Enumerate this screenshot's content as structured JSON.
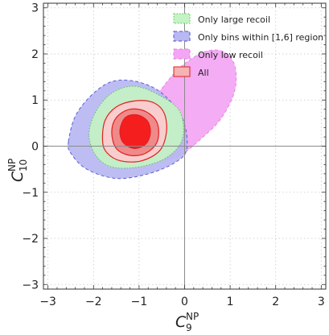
{
  "chart_data": {
    "type": "contour",
    "xlabel": {
      "base": "C",
      "sub": "9",
      "sup": "NP"
    },
    "ylabel": {
      "base": "C",
      "sub": "10",
      "sup": "NP"
    },
    "xlim": [
      -3.1,
      3.1
    ],
    "ylim": [
      -3.1,
      3.1
    ],
    "xticks": [
      -3,
      -2,
      -1,
      0,
      1,
      2,
      3
    ],
    "yticks": [
      -3,
      -2,
      -1,
      0,
      1,
      2,
      3
    ],
    "x_tick_labels": [
      "−3",
      "−2",
      "−1",
      "0",
      "1",
      "2",
      "3"
    ],
    "y_tick_labels": [
      "−3",
      "−2",
      "−1",
      "0",
      "1",
      "2",
      "3"
    ],
    "grid": true,
    "grid_style": "dotted",
    "reference_lines": {
      "x": 0,
      "y": 0
    },
    "legend_position": "top-right",
    "series": [
      {
        "name": "Only low recoil",
        "fill": "#f4a6f4",
        "stroke": "#e27be2",
        "dash": "dashed",
        "regions": [
          {
            "level": 1,
            "points": [
              [
                -1.0,
                0.15
              ],
              [
                -0.85,
                0.7
              ],
              [
                -0.5,
                1.25
              ],
              [
                -0.05,
                1.75
              ],
              [
                0.45,
                2.05
              ],
              [
                0.85,
                2.05
              ],
              [
                1.1,
                1.75
              ],
              [
                1.1,
                1.2
              ],
              [
                0.8,
                0.6
              ],
              [
                0.35,
                0.15
              ],
              [
                -0.1,
                -0.2
              ],
              [
                -0.5,
                -0.3
              ],
              [
                -0.85,
                -0.2
              ]
            ]
          }
        ]
      },
      {
        "name": "Only bins within [1,6] region",
        "fill": "#b8b8f2",
        "stroke": "#5050d0",
        "dash": "dashed",
        "regions": [
          {
            "level": 1,
            "points": [
              [
                -2.55,
                0.1
              ],
              [
                -2.4,
                0.65
              ],
              [
                -2.05,
                1.1
              ],
              [
                -1.6,
                1.4
              ],
              [
                -1.05,
                1.4
              ],
              [
                -0.5,
                1.15
              ],
              [
                -0.05,
                0.6
              ],
              [
                0.05,
                -0.05
              ],
              [
                -0.2,
                -0.35
              ],
              [
                -0.8,
                -0.6
              ],
              [
                -1.5,
                -0.7
              ],
              [
                -2.15,
                -0.5
              ],
              [
                -2.5,
                -0.15
              ]
            ]
          }
        ]
      },
      {
        "name": "Only large recoil",
        "fill": "#c4f3c4",
        "stroke": "#52c452",
        "dash": "dotted",
        "regions": [
          {
            "level": 1,
            "points": [
              [
                -2.1,
                0.25
              ],
              [
                -1.95,
                0.75
              ],
              [
                -1.6,
                1.15
              ],
              [
                -1.1,
                1.3
              ],
              [
                -0.55,
                1.1
              ],
              [
                -0.1,
                0.75
              ],
              [
                -0.05,
                0.15
              ],
              [
                -0.4,
                -0.25
              ],
              [
                -1.0,
                -0.45
              ],
              [
                -1.6,
                -0.45
              ],
              [
                -1.95,
                -0.2
              ]
            ]
          }
        ]
      },
      {
        "name": "All",
        "fill": "#f5b3b3",
        "stroke": "#e02020",
        "dash": "solid",
        "regions": [
          {
            "level": 3,
            "fill": "#f9cdcd",
            "points": [
              [
                -1.8,
                0.1
              ],
              [
                -1.75,
                0.55
              ],
              [
                -1.5,
                0.85
              ],
              [
                -1.1,
                0.98
              ],
              [
                -0.7,
                0.95
              ],
              [
                -0.45,
                0.72
              ],
              [
                -0.4,
                0.3
              ],
              [
                -0.55,
                -0.1
              ],
              [
                -0.95,
                -0.32
              ],
              [
                -1.4,
                -0.32
              ],
              [
                -1.7,
                -0.15
              ]
            ]
          },
          {
            "level": 2,
            "fill": "#f08a8a",
            "points": [
              [
                -1.6,
                0.3
              ],
              [
                -1.5,
                0.62
              ],
              [
                -1.2,
                0.8
              ],
              [
                -0.85,
                0.75
              ],
              [
                -0.6,
                0.5
              ],
              [
                -0.6,
                0.1
              ],
              [
                -0.85,
                -0.15
              ],
              [
                -1.2,
                -0.2
              ],
              [
                -1.5,
                -0.05
              ]
            ]
          },
          {
            "level": 1,
            "fill": "#f51e1e",
            "points": [
              [
                -1.42,
                0.35
              ],
              [
                -1.3,
                0.62
              ],
              [
                -1.05,
                0.68
              ],
              [
                -0.82,
                0.55
              ],
              [
                -0.75,
                0.3
              ],
              [
                -0.85,
                0.05
              ],
              [
                -1.1,
                -0.05
              ],
              [
                -1.35,
                0.08
              ]
            ]
          }
        ]
      }
    ],
    "legend_order": [
      "Only large recoil",
      "Only bins within [1,6] region",
      "Only low recoil",
      "All"
    ]
  }
}
